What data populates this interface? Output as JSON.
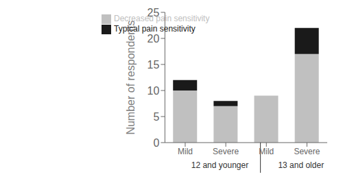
{
  "chart_data": {
    "type": "bar",
    "stacked": true,
    "categories": [
      "Mild",
      "Severe",
      "Mild",
      "Severe"
    ],
    "annotations": [
      "12 and younger",
      "13 and older"
    ],
    "series": [
      {
        "name": "Decreased pain sensitivity",
        "color": "#c0c0c0",
        "values": [
          10,
          7,
          9,
          17
        ]
      },
      {
        "name": "Typical pain sensitivity",
        "color": "#1a1a1a",
        "values": [
          2,
          1,
          0,
          5
        ]
      }
    ],
    "ylabel": "Number of respondents",
    "ylim": [
      0,
      25
    ],
    "yticks": [
      0,
      5,
      10,
      15,
      20,
      25
    ],
    "legend": "upper left",
    "grid": false
  }
}
